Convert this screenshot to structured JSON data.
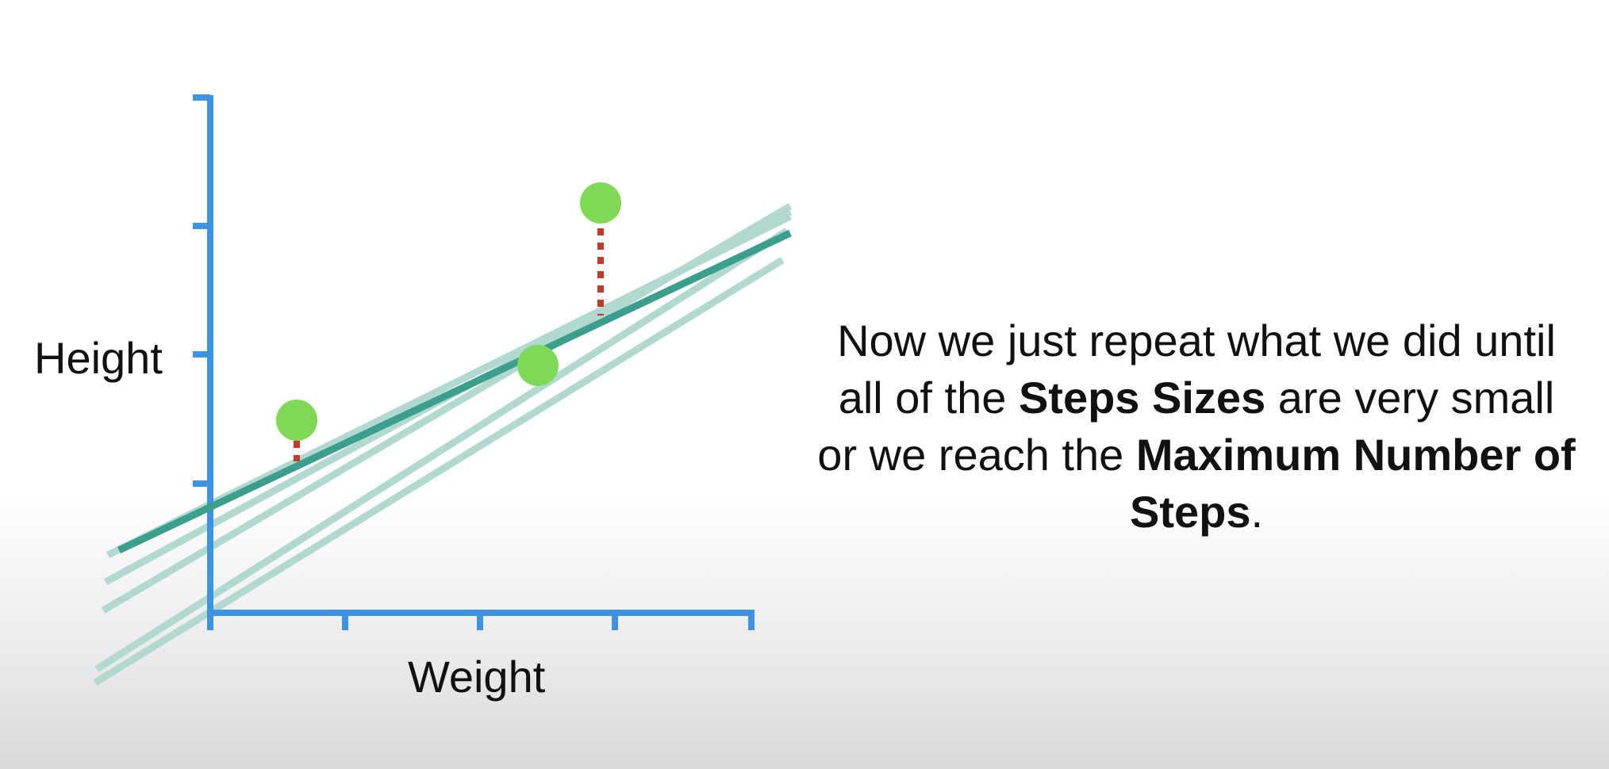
{
  "axes": {
    "ylabel": "Height",
    "xlabel": "Weight"
  },
  "caption": {
    "part1": "Now we just repeat what we did until all of the ",
    "bold1": "Steps Sizes",
    "part2": " are very small or we reach the ",
    "bold2": "Maximum Number of Steps",
    "part3": "."
  },
  "colors": {
    "axis": "#3d94e3",
    "fit_line": "#3c9e8c",
    "previous_lines": "#b2d9d1",
    "points": "#7ed957",
    "residuals": "#c23a2a"
  },
  "icons": {
    "residual": "dotted-line"
  }
}
